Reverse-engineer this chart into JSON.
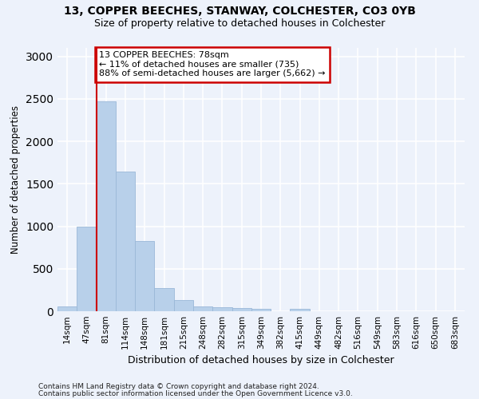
{
  "title1": "13, COPPER BEECHES, STANWAY, COLCHESTER, CO3 0YB",
  "title2": "Size of property relative to detached houses in Colchester",
  "xlabel": "Distribution of detached houses by size in Colchester",
  "ylabel": "Number of detached properties",
  "footnote1": "Contains HM Land Registry data © Crown copyright and database right 2024.",
  "footnote2": "Contains public sector information licensed under the Open Government Licence v3.0.",
  "annotation_line1": "13 COPPER BEECHES: 78sqm",
  "annotation_line2": "← 11% of detached houses are smaller (735)",
  "annotation_line3": "88% of semi-detached houses are larger (5,662) →",
  "bar_labels": [
    "14sqm",
    "47sqm",
    "81sqm",
    "114sqm",
    "148sqm",
    "181sqm",
    "215sqm",
    "248sqm",
    "282sqm",
    "315sqm",
    "349sqm",
    "382sqm",
    "415sqm",
    "449sqm",
    "482sqm",
    "516sqm",
    "549sqm",
    "583sqm",
    "616sqm",
    "650sqm",
    "683sqm"
  ],
  "bar_values": [
    60,
    1000,
    2470,
    1640,
    830,
    270,
    130,
    55,
    50,
    40,
    25,
    0,
    25,
    0,
    0,
    0,
    0,
    0,
    0,
    0,
    0
  ],
  "bar_color": "#b8d0ea",
  "bar_edge_color": "#9ab8d8",
  "marker_color": "#cc0000",
  "ylim": [
    0,
    3100
  ],
  "yticks": [
    0,
    500,
    1000,
    1500,
    2000,
    2500,
    3000
  ],
  "bg_color": "#edf2fb",
  "grid_color": "#ffffff",
  "annotation_box_color": "#ffffff",
  "annotation_box_edge": "#cc0000"
}
